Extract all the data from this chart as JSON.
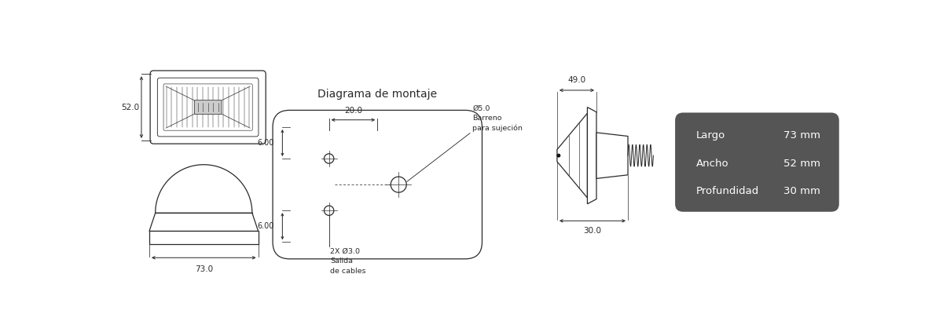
{
  "bg_color": "#ffffff",
  "line_color": "#2a2a2a",
  "title_montaje": "Diagrama de montaje",
  "spec_bg_color": "#555555",
  "spec_text_color": "#ffffff",
  "specs": [
    {
      "label": "Largo",
      "value": "73 mm"
    },
    {
      "label": "Ancho",
      "value": "52 mm"
    },
    {
      "label": "Profundidad",
      "value": "30 mm"
    }
  ],
  "dim_52": "52.0",
  "dim_73": "73.0",
  "dim_49": "49.0",
  "dim_30": "30.0",
  "dim_20": "20.0",
  "dim_6a": "6.00",
  "dim_6b": "6.00",
  "ann_hole": "Ø5.0\nBarreno\npara sujeción",
  "ann_cable": "2X Ø3.0\nSalida\nde cables"
}
